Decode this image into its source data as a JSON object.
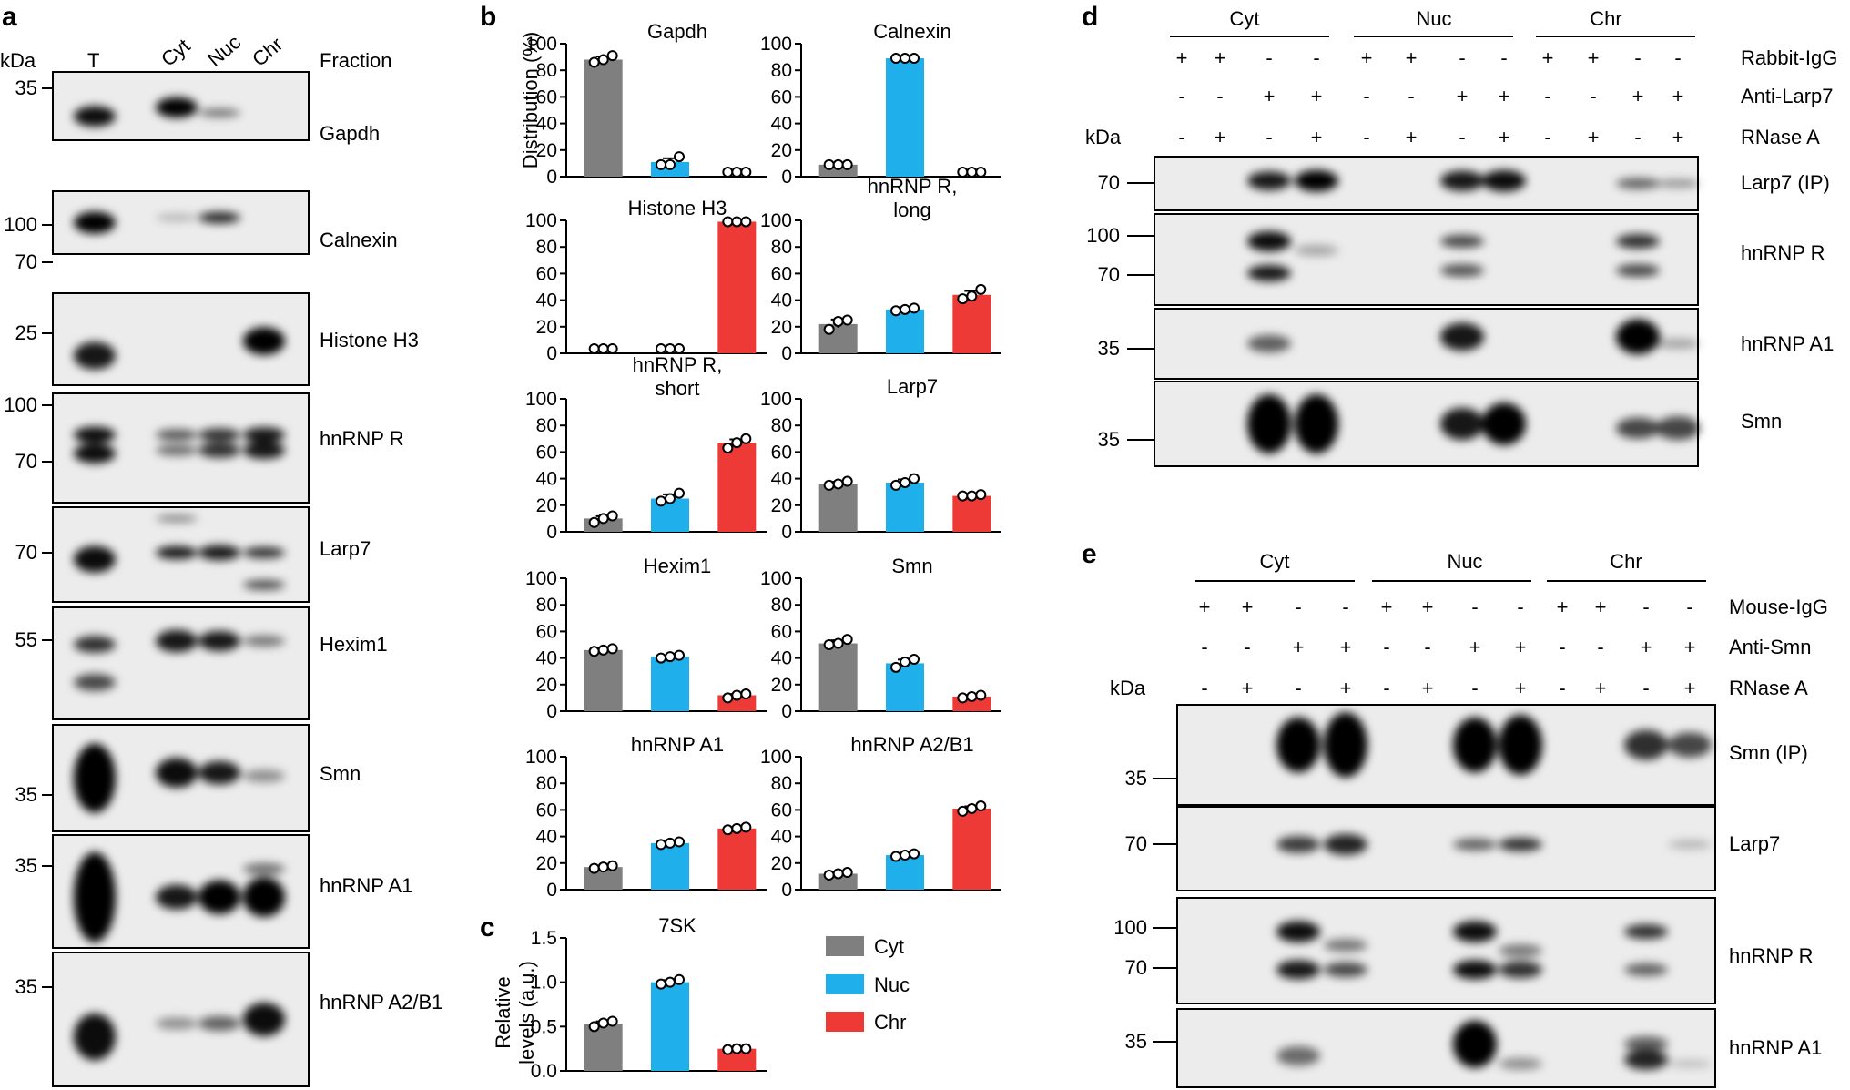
{
  "panels": {
    "a": {
      "letter": "a",
      "unit": "kDa",
      "lanes": [
        "T",
        "Cyt",
        "Nuc",
        "Chr"
      ],
      "fraction_header": "Fraction",
      "blots": [
        {
          "name": "Gapdh",
          "markers": [
            "35"
          ]
        },
        {
          "name": "Calnexin",
          "markers": [
            "100",
            "70"
          ]
        },
        {
          "name": "Histone H3",
          "markers": [
            "25"
          ]
        },
        {
          "name": "hnRNP R",
          "markers": [
            "100",
            "70"
          ]
        },
        {
          "name": "Larp7",
          "markers": [
            "70"
          ]
        },
        {
          "name": "Hexim1",
          "markers": [
            "55"
          ]
        },
        {
          "name": "Smn",
          "markers": [
            "35"
          ]
        },
        {
          "name": "hnRNP A1",
          "markers": [
            "35"
          ]
        },
        {
          "name": "hnRNP A2/B1",
          "markers": [
            "35"
          ]
        }
      ]
    },
    "b": {
      "letter": "b",
      "ylabel": "Distribution (%)"
    },
    "c": {
      "letter": "c",
      "ylabel_line1": "Relative",
      "ylabel_line2": "levels (a.u.)"
    },
    "d": {
      "letter": "d",
      "unit": "kDa",
      "groups": [
        "Cyt",
        "Nuc",
        "Chr"
      ],
      "rows": [
        {
          "label": "Rabbit-IgG",
          "signs": [
            "+",
            "+",
            "-",
            "-",
            "+",
            "+",
            "-",
            "-",
            "+",
            "+",
            "-",
            "-"
          ]
        },
        {
          "label": "Anti-Larp7",
          "signs": [
            "-",
            "-",
            "+",
            "+",
            "-",
            "-",
            "+",
            "+",
            "-",
            "-",
            "+",
            "+"
          ]
        },
        {
          "label": "RNase A",
          "signs": [
            "-",
            "+",
            "-",
            "+",
            "-",
            "+",
            "-",
            "+",
            "-",
            "+",
            "-",
            "+"
          ]
        }
      ],
      "blots": [
        {
          "name": "Larp7 (IP)",
          "markers": [
            "70"
          ]
        },
        {
          "name": "hnRNP R",
          "markers": [
            "100",
            "70"
          ]
        },
        {
          "name": "hnRNP A1",
          "markers": [
            "35"
          ]
        },
        {
          "name": "Smn",
          "markers": [
            "35"
          ]
        }
      ]
    },
    "e": {
      "letter": "e",
      "unit": "kDa",
      "groups": [
        "Cyt",
        "Nuc",
        "Chr"
      ],
      "rows": [
        {
          "label": "Mouse-IgG",
          "signs": [
            "+",
            "+",
            "-",
            "-",
            "+",
            "+",
            "-",
            "-",
            "+",
            "+",
            "-",
            "-"
          ]
        },
        {
          "label": "Anti-Smn",
          "signs": [
            "-",
            "-",
            "+",
            "+",
            "-",
            "-",
            "+",
            "+",
            "-",
            "-",
            "+",
            "+"
          ]
        },
        {
          "label": "RNase A",
          "signs": [
            "-",
            "+",
            "-",
            "+",
            "-",
            "+",
            "-",
            "+",
            "-",
            "+",
            "-",
            "+"
          ]
        }
      ],
      "blots": [
        {
          "name": "Smn (IP)",
          "markers": [
            "35"
          ]
        },
        {
          "name": "Larp7",
          "markers": [
            "70"
          ]
        },
        {
          "name": "hnRNP R",
          "markers": [
            "100",
            "70"
          ]
        },
        {
          "name": "hnRNP A1",
          "markers": [
            "35"
          ]
        }
      ]
    }
  },
  "colors": {
    "Cyt": "#7f7f7f",
    "Nuc": "#1fb0ec",
    "Chr": "#ee3a36"
  },
  "legend": [
    "Cyt",
    "Nuc",
    "Chr"
  ],
  "chart_data": [
    {
      "type": "bar",
      "title": "Gapdh",
      "categories": [
        "Cyt",
        "Nuc",
        "Chr"
      ],
      "values": [
        88,
        11,
        0
      ],
      "points": [
        [
          86,
          88,
          91
        ],
        [
          9,
          9,
          15
        ],
        [
          0,
          0,
          0
        ]
      ],
      "ylim": [
        0,
        100
      ],
      "yticks": [
        "0",
        "20",
        "40",
        "60",
        "80",
        "100"
      ]
    },
    {
      "type": "bar",
      "title": "Calnexin",
      "categories": [
        "Cyt",
        "Nuc",
        "Chr"
      ],
      "values": [
        9,
        89,
        0
      ],
      "points": [
        [
          9,
          9,
          9
        ],
        [
          89,
          89,
          89
        ],
        [
          0,
          0,
          0
        ]
      ],
      "ylim": [
        0,
        100
      ],
      "yticks": [
        "0",
        "20",
        "40",
        "60",
        "80",
        "100"
      ]
    },
    {
      "type": "bar",
      "title": "Histone H3",
      "categories": [
        "Cyt",
        "Nuc",
        "Chr"
      ],
      "values": [
        0,
        0,
        99
      ],
      "points": [
        [
          0,
          0,
          0
        ],
        [
          0,
          0,
          0
        ],
        [
          99,
          99,
          99
        ]
      ],
      "ylim": [
        0,
        100
      ],
      "yticks": [
        "0",
        "20",
        "40",
        "60",
        "80",
        "100"
      ]
    },
    {
      "type": "bar",
      "title": "hnRNP R,",
      "title2": "long",
      "categories": [
        "Cyt",
        "Nuc",
        "Chr"
      ],
      "values": [
        22,
        33,
        44
      ],
      "points": [
        [
          18,
          24,
          25
        ],
        [
          32,
          33,
          34
        ],
        [
          41,
          43,
          48
        ]
      ],
      "ylim": [
        0,
        100
      ],
      "yticks": [
        "0",
        "20",
        "40",
        "60",
        "80",
        "100"
      ]
    },
    {
      "type": "bar",
      "title": "hnRNP R,",
      "title2": "short",
      "categories": [
        "Cyt",
        "Nuc",
        "Chr"
      ],
      "values": [
        10,
        25,
        67
      ],
      "points": [
        [
          7,
          10,
          12
        ],
        [
          23,
          25,
          29
        ],
        [
          63,
          67,
          70
        ]
      ],
      "ylim": [
        0,
        100
      ],
      "yticks": [
        "0",
        "20",
        "40",
        "60",
        "80",
        "100"
      ]
    },
    {
      "type": "bar",
      "title": "Larp7",
      "categories": [
        "Cyt",
        "Nuc",
        "Chr"
      ],
      "values": [
        36,
        37,
        27
      ],
      "points": [
        [
          35,
          36,
          38
        ],
        [
          35,
          37,
          40
        ],
        [
          27,
          27,
          28
        ]
      ],
      "ylim": [
        0,
        100
      ],
      "yticks": [
        "0",
        "20",
        "40",
        "60",
        "80",
        "100"
      ]
    },
    {
      "type": "bar",
      "title": "Hexim1",
      "categories": [
        "Cyt",
        "Nuc",
        "Chr"
      ],
      "values": [
        46,
        41,
        12
      ],
      "points": [
        [
          45,
          46,
          47
        ],
        [
          40,
          41,
          42
        ],
        [
          10,
          12,
          13
        ]
      ],
      "ylim": [
        0,
        100
      ],
      "yticks": [
        "0",
        "20",
        "40",
        "60",
        "80",
        "100"
      ]
    },
    {
      "type": "bar",
      "title": "Smn",
      "categories": [
        "Cyt",
        "Nuc",
        "Chr"
      ],
      "values": [
        51,
        36,
        11
      ],
      "points": [
        [
          50,
          51,
          54
        ],
        [
          33,
          37,
          39
        ],
        [
          10,
          11,
          12
        ]
      ],
      "ylim": [
        0,
        100
      ],
      "yticks": [
        "0",
        "20",
        "40",
        "60",
        "80",
        "100"
      ]
    },
    {
      "type": "bar",
      "title": "hnRNP A1",
      "categories": [
        "Cyt",
        "Nuc",
        "Chr"
      ],
      "values": [
        17,
        35,
        46
      ],
      "points": [
        [
          16,
          17,
          18
        ],
        [
          34,
          35,
          36
        ],
        [
          45,
          46,
          47
        ]
      ],
      "ylim": [
        0,
        100
      ],
      "yticks": [
        "0",
        "20",
        "40",
        "60",
        "80",
        "100"
      ]
    },
    {
      "type": "bar",
      "title": "hnRNP A2/B1",
      "categories": [
        "Cyt",
        "Nuc",
        "Chr"
      ],
      "values": [
        12,
        26,
        61
      ],
      "points": [
        [
          11,
          12,
          13
        ],
        [
          25,
          26,
          27
        ],
        [
          59,
          61,
          63
        ]
      ],
      "ylim": [
        0,
        100
      ],
      "yticks": [
        "0",
        "20",
        "40",
        "60",
        "80",
        "100"
      ]
    },
    {
      "type": "bar",
      "title": "7SK",
      "categories": [
        "Cyt",
        "Nuc",
        "Chr"
      ],
      "values": [
        0.53,
        1.0,
        0.25
      ],
      "points": [
        [
          0.5,
          0.54,
          0.56
        ],
        [
          0.98,
          1.0,
          1.03
        ],
        [
          0.24,
          0.25,
          0.25
        ]
      ],
      "ylim": [
        0,
        1.5
      ],
      "yticks": [
        "0.0",
        "0.5",
        "1.0",
        "1.5"
      ]
    }
  ],
  "blot_bands": {
    "a": [
      [
        [
          0,
          0.65,
          0.95,
          0.3
        ],
        [
          1,
          0.52,
          1.0,
          0.3
        ],
        [
          2,
          0.6,
          0.55,
          0.12
        ]
      ],
      [
        [
          0,
          0.5,
          1.0,
          0.35
        ],
        [
          1,
          0.42,
          0.25,
          0.1
        ],
        [
          2,
          0.42,
          0.85,
          0.18
        ]
      ],
      [
        [
          0,
          0.68,
          0.9,
          0.3
        ],
        [
          3,
          0.52,
          1.0,
          0.3
        ]
      ],
      [
        [
          0,
          0.38,
          0.95,
          0.15
        ],
        [
          0,
          0.55,
          0.95,
          0.18
        ],
        [
          1,
          0.38,
          0.65,
          0.1
        ],
        [
          1,
          0.52,
          0.55,
          0.1
        ],
        [
          2,
          0.38,
          0.8,
          0.12
        ],
        [
          2,
          0.52,
          0.8,
          0.14
        ],
        [
          3,
          0.38,
          0.9,
          0.14
        ],
        [
          3,
          0.52,
          0.9,
          0.16
        ]
      ],
      [
        [
          0,
          0.55,
          0.95,
          0.28
        ],
        [
          1,
          0.12,
          0.45,
          0.06
        ],
        [
          1,
          0.48,
          0.9,
          0.14
        ],
        [
          2,
          0.48,
          0.9,
          0.16
        ],
        [
          3,
          0.48,
          0.8,
          0.12
        ],
        [
          3,
          0.82,
          0.7,
          0.1
        ]
      ],
      [
        [
          0,
          0.33,
          0.8,
          0.15
        ],
        [
          0,
          0.67,
          0.7,
          0.15
        ],
        [
          1,
          0.3,
          0.9,
          0.2
        ],
        [
          2,
          0.3,
          0.9,
          0.18
        ],
        [
          3,
          0.3,
          0.5,
          0.1
        ]
      ],
      [
        [
          0,
          0.5,
          1.0,
          0.65
        ],
        [
          1,
          0.45,
          0.95,
          0.28
        ],
        [
          2,
          0.45,
          0.9,
          0.22
        ],
        [
          3,
          0.48,
          0.4,
          0.12
        ]
      ],
      [
        [
          0,
          0.55,
          1.0,
          0.8
        ],
        [
          1,
          0.55,
          0.9,
          0.22
        ],
        [
          2,
          0.55,
          1.0,
          0.3
        ],
        [
          3,
          0.3,
          0.55,
          0.1
        ],
        [
          3,
          0.55,
          1.0,
          0.35
        ]
      ],
      [
        [
          0,
          0.63,
          0.95,
          0.35
        ],
        [
          1,
          0.53,
          0.4,
          0.09
        ],
        [
          2,
          0.53,
          0.6,
          0.11
        ],
        [
          3,
          0.5,
          0.95,
          0.25
        ]
      ]
    ],
    "d": [
      [
        [
          2,
          0.45,
          0.9,
          0.35
        ],
        [
          3,
          0.45,
          1.0,
          0.4
        ],
        [
          6,
          0.45,
          0.9,
          0.38
        ],
        [
          7,
          0.45,
          0.95,
          0.4
        ],
        [
          10,
          0.5,
          0.6,
          0.2
        ],
        [
          11,
          0.5,
          0.4,
          0.15
        ]
      ],
      [
        [
          2,
          0.3,
          0.95,
          0.22
        ],
        [
          2,
          0.65,
          0.9,
          0.18
        ],
        [
          3,
          0.4,
          0.3,
          0.12
        ],
        [
          6,
          0.3,
          0.7,
          0.14
        ],
        [
          6,
          0.62,
          0.65,
          0.14
        ],
        [
          10,
          0.3,
          0.8,
          0.16
        ],
        [
          10,
          0.62,
          0.7,
          0.14
        ]
      ],
      [
        [
          2,
          0.5,
          0.6,
          0.25
        ],
        [
          6,
          0.4,
          0.9,
          0.4
        ],
        [
          10,
          0.4,
          1.0,
          0.5
        ],
        [
          11,
          0.5,
          0.3,
          0.15
        ]
      ],
      [
        [
          2,
          0.5,
          1.0,
          0.7
        ],
        [
          3,
          0.5,
          1.0,
          0.7
        ],
        [
          6,
          0.5,
          0.9,
          0.38
        ],
        [
          7,
          0.5,
          1.0,
          0.5
        ],
        [
          10,
          0.55,
          0.7,
          0.25
        ],
        [
          11,
          0.55,
          0.7,
          0.28
        ]
      ]
    ],
    "e": [
      [
        [
          2,
          0.4,
          1.0,
          0.55
        ],
        [
          3,
          0.4,
          1.0,
          0.65
        ],
        [
          6,
          0.4,
          1.0,
          0.55
        ],
        [
          7,
          0.4,
          1.0,
          0.6
        ],
        [
          10,
          0.4,
          0.8,
          0.3
        ],
        [
          11,
          0.4,
          0.7,
          0.25
        ]
      ],
      [
        [
          2,
          0.45,
          0.75,
          0.2
        ],
        [
          3,
          0.45,
          0.85,
          0.25
        ],
        [
          6,
          0.45,
          0.6,
          0.14
        ],
        [
          7,
          0.45,
          0.8,
          0.16
        ],
        [
          11,
          0.45,
          0.25,
          0.1
        ]
      ],
      [
        [
          2,
          0.32,
          0.95,
          0.2
        ],
        [
          2,
          0.68,
          0.9,
          0.18
        ],
        [
          3,
          0.45,
          0.5,
          0.12
        ],
        [
          3,
          0.68,
          0.7,
          0.14
        ],
        [
          6,
          0.32,
          0.95,
          0.2
        ],
        [
          6,
          0.68,
          0.95,
          0.18
        ],
        [
          7,
          0.5,
          0.5,
          0.12
        ],
        [
          7,
          0.68,
          0.8,
          0.16
        ],
        [
          10,
          0.32,
          0.8,
          0.14
        ],
        [
          10,
          0.68,
          0.6,
          0.12
        ]
      ],
      [
        [
          2,
          0.6,
          0.55,
          0.25
        ],
        [
          6,
          0.45,
          1.0,
          0.6
        ],
        [
          7,
          0.7,
          0.4,
          0.15
        ],
        [
          10,
          0.45,
          0.6,
          0.2
        ],
        [
          10,
          0.65,
          0.85,
          0.25
        ],
        [
          11,
          0.7,
          0.2,
          0.1
        ]
      ]
    ]
  }
}
